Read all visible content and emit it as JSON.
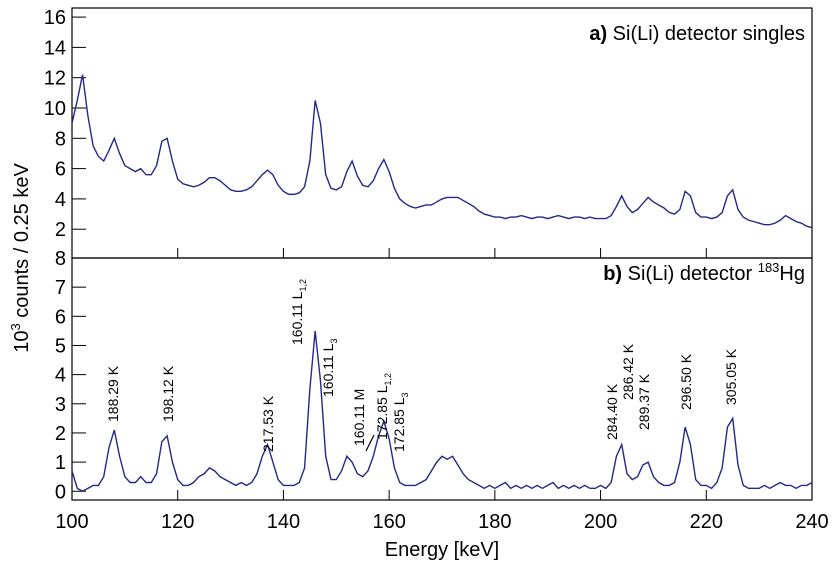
{
  "chart_data": [
    {
      "type": "line",
      "title_prefix": "a)",
      "title": " Si(Li) detector singles",
      "ylabel_base": "10",
      "ylabel_sup": "3",
      "ylabel": " counts / 0.25 keV",
      "xlim": [
        100,
        240
      ],
      "xticks": [
        100,
        120,
        140,
        160,
        180,
        200,
        220,
        240
      ],
      "ylim": [
        0.1,
        16.6
      ],
      "yticks": [
        2,
        4,
        6,
        8,
        10,
        12,
        14,
        16
      ],
      "color": "#27278a",
      "x": [
        100,
        101,
        102,
        103,
        104,
        105,
        106,
        107,
        108,
        109,
        110,
        111,
        112,
        113,
        114,
        115,
        116,
        117,
        118,
        119,
        120,
        121,
        122,
        123,
        124,
        125,
        126,
        127,
        128,
        129,
        130,
        131,
        132,
        133,
        134,
        135,
        136,
        137,
        138,
        139,
        140,
        141,
        142,
        143,
        144,
        145,
        146,
        147,
        148,
        149,
        150,
        151,
        152,
        153,
        154,
        155,
        156,
        157,
        158,
        159,
        160,
        161,
        162,
        163,
        164,
        165,
        166,
        167,
        168,
        169,
        170,
        171,
        172,
        173,
        174,
        175,
        176,
        177,
        178,
        179,
        180,
        181,
        182,
        183,
        184,
        185,
        186,
        187,
        188,
        189,
        190,
        191,
        192,
        193,
        194,
        195,
        196,
        197,
        198,
        199,
        200,
        201,
        202,
        203,
        204,
        205,
        206,
        207,
        208,
        209,
        210,
        211,
        212,
        213,
        214,
        215,
        216,
        217,
        218,
        219,
        220,
        221,
        222,
        223,
        224,
        225,
        226,
        227,
        228,
        229,
        230,
        231,
        232,
        233,
        234,
        235,
        236,
        237,
        238,
        239,
        240
      ],
      "values": [
        9,
        10.5,
        12.2,
        9.5,
        7.5,
        6.8,
        6.5,
        7.2,
        8.0,
        7.0,
        6.2,
        6.0,
        5.8,
        6.0,
        5.6,
        5.6,
        6.2,
        7.8,
        8.0,
        6.5,
        5.3,
        5.0,
        4.9,
        4.8,
        4.9,
        5.1,
        5.4,
        5.4,
        5.2,
        4.9,
        4.6,
        4.5,
        4.5,
        4.6,
        4.8,
        5.2,
        5.6,
        5.9,
        5.6,
        4.9,
        4.5,
        4.3,
        4.3,
        4.4,
        4.8,
        6.5,
        10.5,
        9.0,
        5.6,
        4.7,
        4.6,
        4.8,
        5.8,
        6.5,
        5.5,
        4.9,
        4.8,
        5.2,
        6.0,
        6.6,
        5.8,
        4.7,
        4.0,
        3.7,
        3.5,
        3.4,
        3.5,
        3.6,
        3.6,
        3.8,
        4.0,
        4.1,
        4.1,
        4.1,
        3.9,
        3.7,
        3.5,
        3.2,
        3.0,
        2.9,
        2.8,
        2.8,
        2.7,
        2.8,
        2.8,
        2.9,
        2.8,
        2.7,
        2.8,
        2.8,
        2.7,
        2.8,
        2.9,
        2.8,
        2.7,
        2.8,
        2.8,
        2.7,
        2.8,
        2.7,
        2.7,
        2.7,
        2.9,
        3.5,
        4.2,
        3.5,
        3.1,
        3.3,
        3.7,
        4.1,
        3.8,
        3.6,
        3.4,
        3.1,
        3.0,
        3.3,
        4.5,
        4.2,
        3.1,
        2.8,
        2.8,
        2.7,
        2.8,
        3.1,
        4.2,
        4.6,
        3.3,
        2.8,
        2.6,
        2.5,
        2.4,
        2.3,
        2.3,
        2.4,
        2.6,
        2.9,
        2.7,
        2.5,
        2.4,
        2.2,
        2.1
      ]
    },
    {
      "type": "line",
      "title_prefix": "b)",
      "title": " Si(Li) detector ",
      "title_sup": "183",
      "title_suffix": "Hg",
      "xlabel": "Energy [keV]",
      "xlim": [
        100,
        240
      ],
      "xticks": [
        100,
        120,
        140,
        160,
        180,
        200,
        220,
        240
      ],
      "ylim": [
        -0.3,
        8
      ],
      "yticks": [
        0,
        1,
        2,
        3,
        4,
        5,
        6,
        7,
        8
      ],
      "color": "#27278a",
      "x": [
        100,
        101,
        102,
        103,
        104,
        105,
        106,
        107,
        108,
        109,
        110,
        111,
        112,
        113,
        114,
        115,
        116,
        117,
        118,
        119,
        120,
        121,
        122,
        123,
        124,
        125,
        126,
        127,
        128,
        129,
        130,
        131,
        132,
        133,
        134,
        135,
        136,
        137,
        138,
        139,
        140,
        141,
        142,
        143,
        144,
        145,
        146,
        147,
        148,
        149,
        150,
        151,
        152,
        153,
        154,
        155,
        156,
        157,
        158,
        159,
        160,
        161,
        162,
        163,
        164,
        165,
        166,
        167,
        168,
        169,
        170,
        171,
        172,
        173,
        174,
        175,
        176,
        177,
        178,
        179,
        180,
        181,
        182,
        183,
        184,
        185,
        186,
        187,
        188,
        189,
        190,
        191,
        192,
        193,
        194,
        195,
        196,
        197,
        198,
        199,
        200,
        201,
        202,
        203,
        204,
        205,
        206,
        207,
        208,
        209,
        210,
        211,
        212,
        213,
        214,
        215,
        216,
        217,
        218,
        219,
        220,
        221,
        222,
        223,
        224,
        225,
        226,
        227,
        228,
        229,
        230,
        231,
        232,
        233,
        234,
        235,
        236,
        237,
        238,
        239,
        240
      ],
      "values": [
        0.7,
        0.1,
        0.0,
        0.1,
        0.2,
        0.2,
        0.5,
        1.5,
        2.1,
        1.2,
        0.5,
        0.3,
        0.3,
        0.5,
        0.3,
        0.3,
        0.6,
        1.7,
        1.9,
        1.0,
        0.4,
        0.2,
        0.2,
        0.3,
        0.5,
        0.6,
        0.8,
        0.7,
        0.5,
        0.4,
        0.3,
        0.2,
        0.3,
        0.2,
        0.3,
        0.6,
        1.2,
        1.6,
        1.0,
        0.4,
        0.2,
        0.2,
        0.2,
        0.3,
        0.8,
        3.5,
        5.5,
        3.8,
        1.2,
        0.4,
        0.4,
        0.7,
        1.2,
        1.0,
        0.6,
        0.5,
        0.7,
        1.2,
        1.9,
        2.4,
        1.8,
        0.8,
        0.3,
        0.2,
        0.2,
        0.2,
        0.3,
        0.4,
        0.7,
        1.0,
        1.2,
        1.1,
        1.2,
        0.9,
        0.6,
        0.4,
        0.3,
        0.2,
        0.1,
        0.2,
        0.1,
        0.2,
        0.3,
        0.1,
        0.2,
        0.1,
        0.2,
        0.1,
        0.2,
        0.1,
        0.2,
        0.3,
        0.1,
        0.2,
        0.1,
        0.2,
        0.1,
        0.2,
        0.1,
        0.1,
        0.2,
        0.1,
        0.3,
        1.2,
        1.6,
        0.6,
        0.4,
        0.5,
        0.9,
        1.0,
        0.5,
        0.3,
        0.2,
        0.2,
        0.3,
        1.0,
        2.2,
        1.6,
        0.4,
        0.2,
        0.2,
        0.1,
        0.3,
        0.8,
        2.2,
        2.5,
        0.9,
        0.2,
        0.1,
        0.1,
        0.1,
        0.2,
        0.1,
        0.2,
        0.3,
        0.2,
        0.2,
        0.1,
        0.2,
        0.2,
        0.3
      ],
      "annotations": [
        {
          "text": "188.29 K"
        },
        {
          "text": "198.12 K"
        },
        {
          "text": "217.53 K"
        },
        {
          "text": "160.11 L",
          "sub": "1,2"
        },
        {
          "text": "160.11 L",
          "sub": "3"
        },
        {
          "text": "160.11 M"
        },
        {
          "text": "172.85 L",
          "sub": "1,2"
        },
        {
          "text": "172.85 L",
          "sub": "3"
        },
        {
          "text": "284.40 K"
        },
        {
          "text": "286.42 K"
        },
        {
          "text": "289.37 K"
        },
        {
          "text": "296.50 K"
        },
        {
          "text": "305.05 K"
        }
      ]
    }
  ]
}
